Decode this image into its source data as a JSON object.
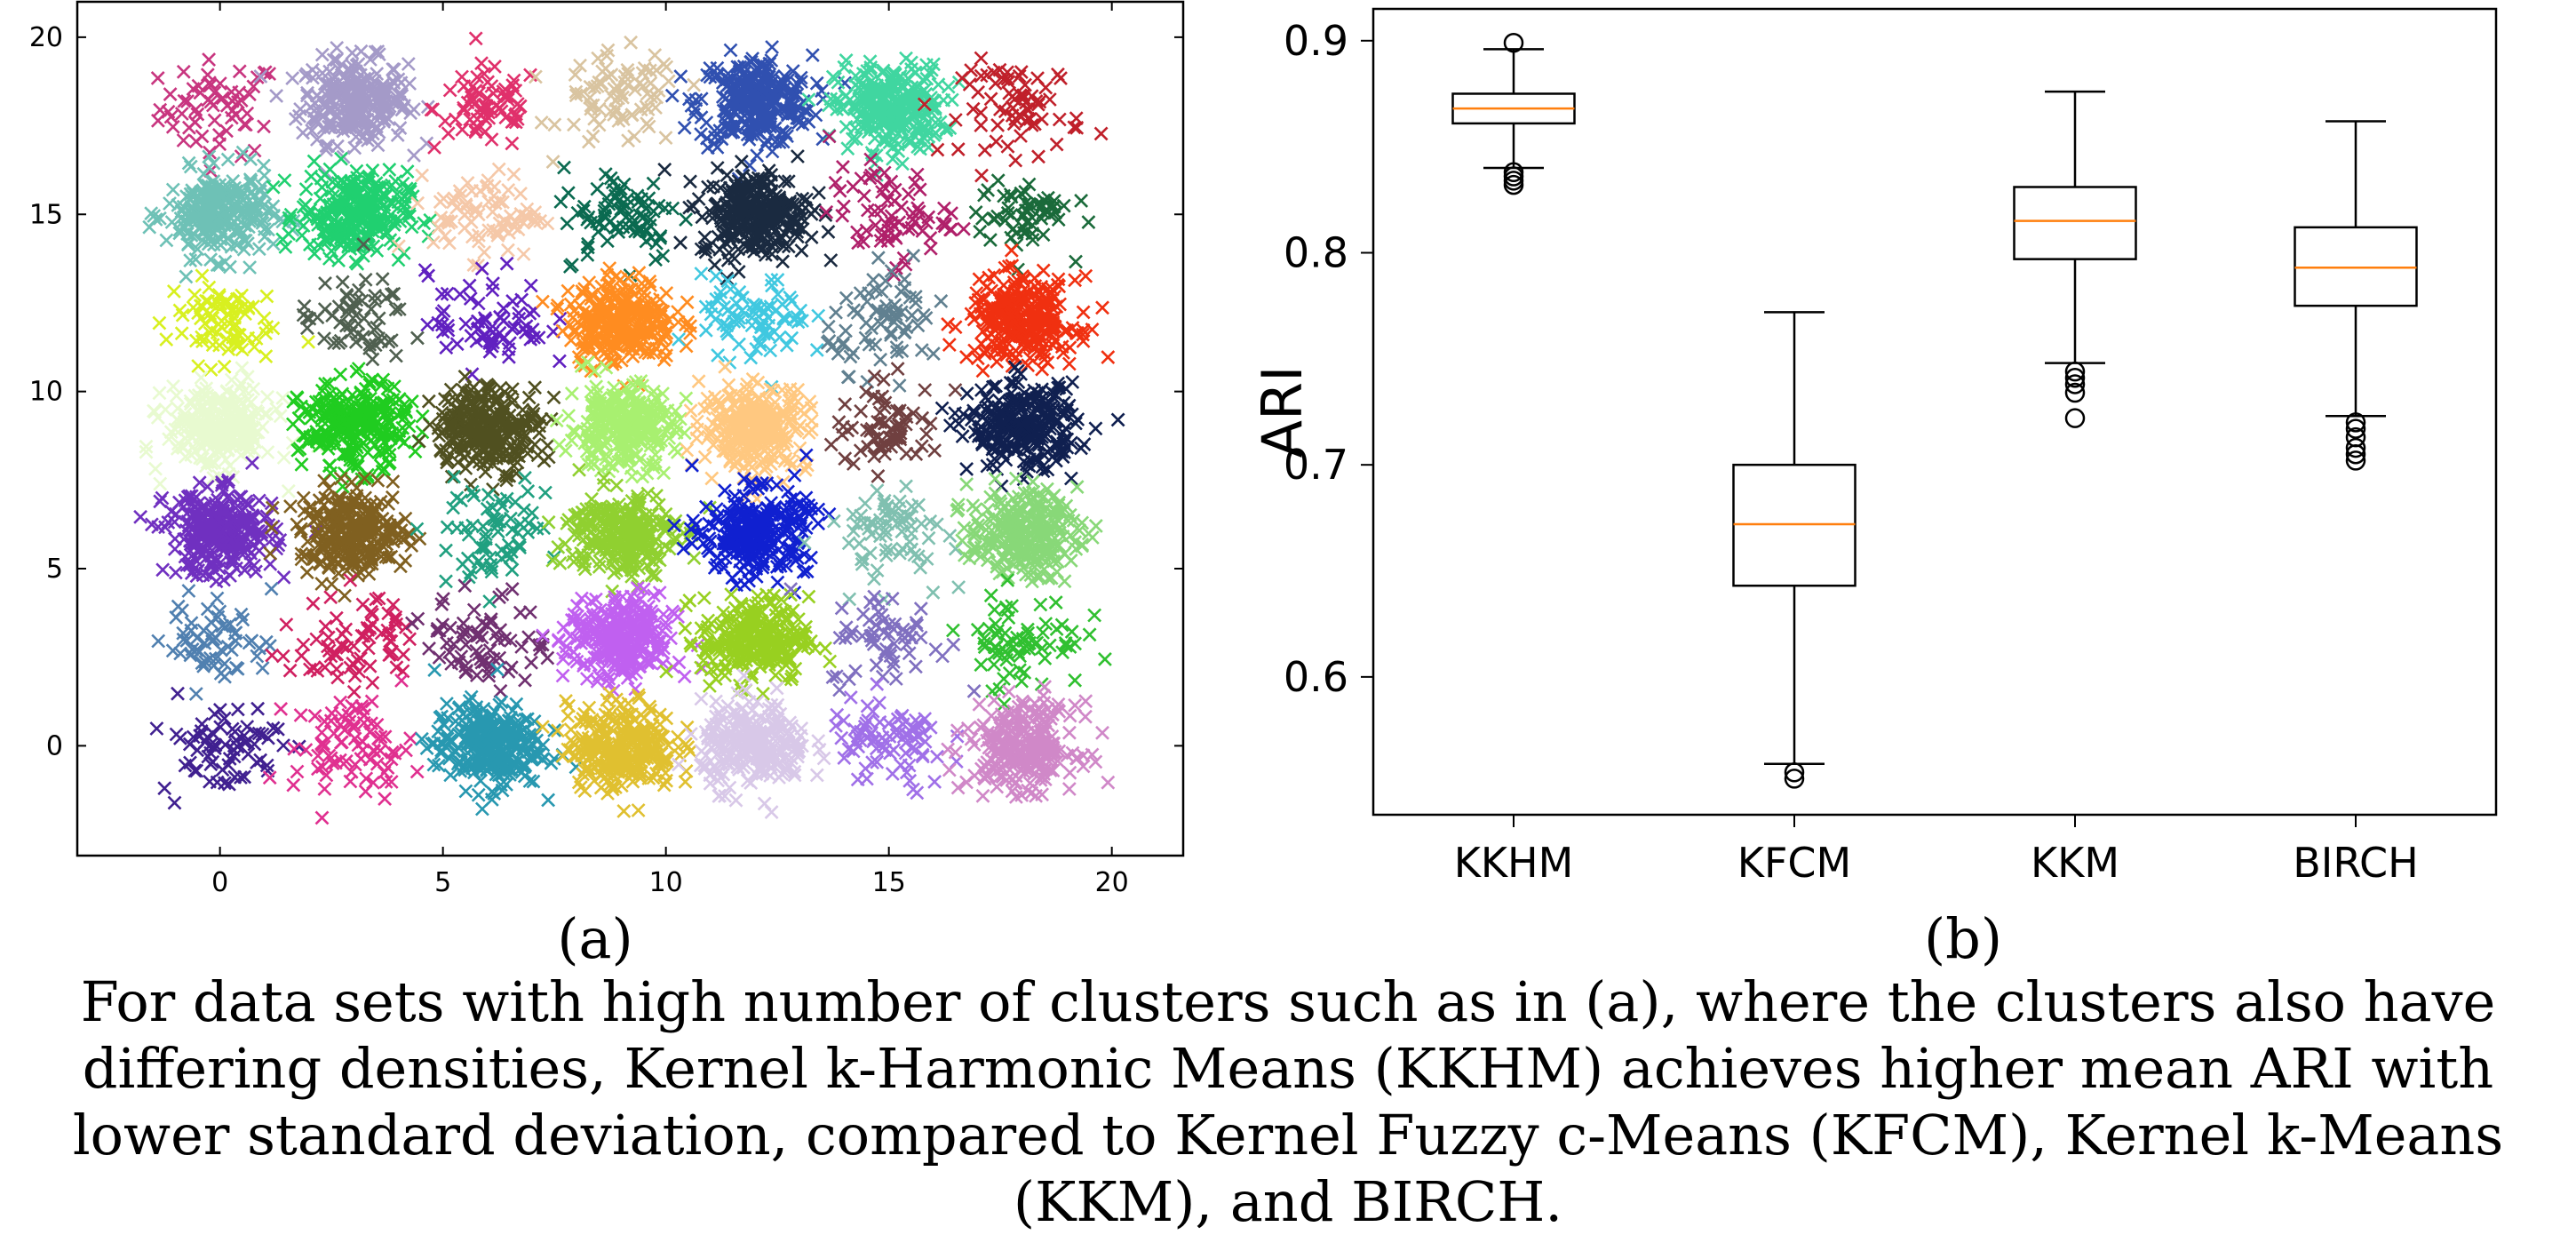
{
  "caption": "For data sets with high number of clusters such as in (a), where the clusters also have differing densities, Kernel k-Harmonic Means (KKHM) achieves higher mean ARI with lower standard deviation, compared to Kernel Fuzzy c-Means (KFCM), Kernel k-Means (KKM), and BIRCH.",
  "chart_data": [
    {
      "type": "scatter",
      "panel_label": "(a)",
      "marker": "x",
      "xlim": [
        -3.2,
        21.6
      ],
      "ylim": [
        -3.1,
        21
      ],
      "x_ticks": [
        0,
        5,
        10,
        15,
        20
      ],
      "y_ticks": [
        0,
        5,
        10,
        15,
        20
      ],
      "clusters": [
        {
          "cx": 0.0,
          "cy": 18.0,
          "spread": 0.9,
          "n": 60,
          "color": "#c8357f"
        },
        {
          "cx": 3.0,
          "cy": 18.2,
          "spread": 0.8,
          "n": 260,
          "color": "#a49ac8"
        },
        {
          "cx": 6.0,
          "cy": 18.0,
          "spread": 0.8,
          "n": 70,
          "color": "#e0306b"
        },
        {
          "cx": 9.0,
          "cy": 18.2,
          "spread": 0.9,
          "n": 80,
          "color": "#d9c4a0"
        },
        {
          "cx": 12.0,
          "cy": 18.2,
          "spread": 0.85,
          "n": 280,
          "color": "#3050b0"
        },
        {
          "cx": 15.0,
          "cy": 18.0,
          "spread": 0.8,
          "n": 280,
          "color": "#40d6a0"
        },
        {
          "cx": 18.0,
          "cy": 18.0,
          "spread": 0.9,
          "n": 70,
          "color": "#c0202a"
        },
        {
          "cx": 0.0,
          "cy": 15.0,
          "spread": 0.8,
          "n": 260,
          "color": "#6ec1b6"
        },
        {
          "cx": 3.0,
          "cy": 15.0,
          "spread": 0.8,
          "n": 260,
          "color": "#20d070"
        },
        {
          "cx": 6.0,
          "cy": 15.0,
          "spread": 0.8,
          "n": 80,
          "color": "#f5c8a8"
        },
        {
          "cx": 9.0,
          "cy": 15.0,
          "spread": 0.9,
          "n": 80,
          "color": "#0a6a50"
        },
        {
          "cx": 12.0,
          "cy": 15.0,
          "spread": 0.8,
          "n": 280,
          "color": "#1a2a40"
        },
        {
          "cx": 15.0,
          "cy": 15.0,
          "spread": 0.9,
          "n": 70,
          "color": "#b0206a"
        },
        {
          "cx": 18.0,
          "cy": 15.0,
          "spread": 0.7,
          "n": 60,
          "color": "#1a6a3a"
        },
        {
          "cx": 0.0,
          "cy": 12.0,
          "spread": 0.8,
          "n": 80,
          "color": "#d8f020"
        },
        {
          "cx": 3.0,
          "cy": 12.0,
          "spread": 0.8,
          "n": 60,
          "color": "#506050"
        },
        {
          "cx": 6.0,
          "cy": 12.0,
          "spread": 0.9,
          "n": 70,
          "color": "#6020c0"
        },
        {
          "cx": 9.0,
          "cy": 12.0,
          "spread": 0.8,
          "n": 280,
          "color": "#ff8c20"
        },
        {
          "cx": 12.0,
          "cy": 12.0,
          "spread": 0.8,
          "n": 80,
          "color": "#40c8e0"
        },
        {
          "cx": 15.0,
          "cy": 12.0,
          "spread": 0.9,
          "n": 70,
          "color": "#608090"
        },
        {
          "cx": 18.0,
          "cy": 12.0,
          "spread": 0.8,
          "n": 280,
          "color": "#f03010"
        },
        {
          "cx": 0.0,
          "cy": 9.0,
          "spread": 0.8,
          "n": 260,
          "color": "#e8fad0"
        },
        {
          "cx": 3.0,
          "cy": 9.0,
          "spread": 0.8,
          "n": 260,
          "color": "#20cc20"
        },
        {
          "cx": 6.0,
          "cy": 9.0,
          "spread": 0.8,
          "n": 280,
          "color": "#505020"
        },
        {
          "cx": 9.0,
          "cy": 9.0,
          "spread": 0.8,
          "n": 260,
          "color": "#a8f070"
        },
        {
          "cx": 12.0,
          "cy": 9.0,
          "spread": 0.8,
          "n": 260,
          "color": "#ffc880"
        },
        {
          "cx": 15.0,
          "cy": 9.0,
          "spread": 0.8,
          "n": 70,
          "color": "#704040"
        },
        {
          "cx": 18.0,
          "cy": 9.0,
          "spread": 0.8,
          "n": 280,
          "color": "#102050"
        },
        {
          "cx": 0.0,
          "cy": 6.0,
          "spread": 0.8,
          "n": 280,
          "color": "#7030c0"
        },
        {
          "cx": 3.0,
          "cy": 6.0,
          "spread": 0.8,
          "n": 260,
          "color": "#806020"
        },
        {
          "cx": 6.0,
          "cy": 6.0,
          "spread": 0.9,
          "n": 70,
          "color": "#20a080"
        },
        {
          "cx": 9.0,
          "cy": 6.0,
          "spread": 0.8,
          "n": 260,
          "color": "#90d030"
        },
        {
          "cx": 12.0,
          "cy": 6.0,
          "spread": 0.8,
          "n": 280,
          "color": "#1020d0"
        },
        {
          "cx": 15.0,
          "cy": 6.0,
          "spread": 0.9,
          "n": 70,
          "color": "#80c0b0"
        },
        {
          "cx": 18.0,
          "cy": 6.0,
          "spread": 0.8,
          "n": 260,
          "color": "#88d878"
        },
        {
          "cx": 0.0,
          "cy": 3.0,
          "spread": 0.8,
          "n": 60,
          "color": "#5080b0"
        },
        {
          "cx": 3.0,
          "cy": 3.0,
          "spread": 0.9,
          "n": 70,
          "color": "#d02060"
        },
        {
          "cx": 6.0,
          "cy": 3.0,
          "spread": 0.9,
          "n": 70,
          "color": "#703070"
        },
        {
          "cx": 9.0,
          "cy": 3.0,
          "spread": 0.8,
          "n": 280,
          "color": "#c060f0"
        },
        {
          "cx": 12.0,
          "cy": 3.0,
          "spread": 0.8,
          "n": 260,
          "color": "#98d020"
        },
        {
          "cx": 15.0,
          "cy": 3.0,
          "spread": 0.9,
          "n": 60,
          "color": "#8070c0"
        },
        {
          "cx": 18.0,
          "cy": 3.0,
          "spread": 0.9,
          "n": 70,
          "color": "#30c030"
        },
        {
          "cx": 0.0,
          "cy": 0.0,
          "spread": 0.9,
          "n": 70,
          "color": "#402090"
        },
        {
          "cx": 3.0,
          "cy": 0.0,
          "spread": 0.9,
          "n": 80,
          "color": "#e03090"
        },
        {
          "cx": 6.0,
          "cy": 0.0,
          "spread": 0.8,
          "n": 280,
          "color": "#2898b0"
        },
        {
          "cx": 9.0,
          "cy": 0.0,
          "spread": 0.8,
          "n": 280,
          "color": "#e0c030"
        },
        {
          "cx": 12.0,
          "cy": 0.0,
          "spread": 0.8,
          "n": 260,
          "color": "#d8c8e8"
        },
        {
          "cx": 15.0,
          "cy": 0.0,
          "spread": 0.9,
          "n": 80,
          "color": "#a070e8"
        },
        {
          "cx": 18.0,
          "cy": 0.0,
          "spread": 0.8,
          "n": 260,
          "color": "#d088c8"
        }
      ]
    },
    {
      "type": "boxplot",
      "panel_label": "(b)",
      "ylabel": "ARI",
      "ylim": [
        0.535,
        0.915
      ],
      "y_ticks": [
        0.6,
        0.7,
        0.8,
        0.9
      ],
      "categories": [
        "KKHM",
        "KFCM",
        "KKM",
        "BIRCH"
      ],
      "series": [
        {
          "q1": 0.861,
          "median": 0.868,
          "q3": 0.875,
          "whisker_low": 0.84,
          "whisker_high": 0.896,
          "outliers": [
            0.899,
            0.838,
            0.836,
            0.834,
            0.832
          ]
        },
        {
          "q1": 0.643,
          "median": 0.672,
          "q3": 0.7,
          "whisker_low": 0.559,
          "whisker_high": 0.772,
          "outliers": [
            0.555,
            0.552
          ]
        },
        {
          "q1": 0.797,
          "median": 0.815,
          "q3": 0.831,
          "whisker_low": 0.748,
          "whisker_high": 0.876,
          "outliers": [
            0.744,
            0.741,
            0.738,
            0.734,
            0.722
          ]
        },
        {
          "q1": 0.775,
          "median": 0.793,
          "q3": 0.812,
          "whisker_low": 0.723,
          "whisker_high": 0.862,
          "outliers": [
            0.72,
            0.717,
            0.713,
            0.708,
            0.705,
            0.702
          ]
        }
      ],
      "median_color": "#ff7f0e"
    }
  ]
}
